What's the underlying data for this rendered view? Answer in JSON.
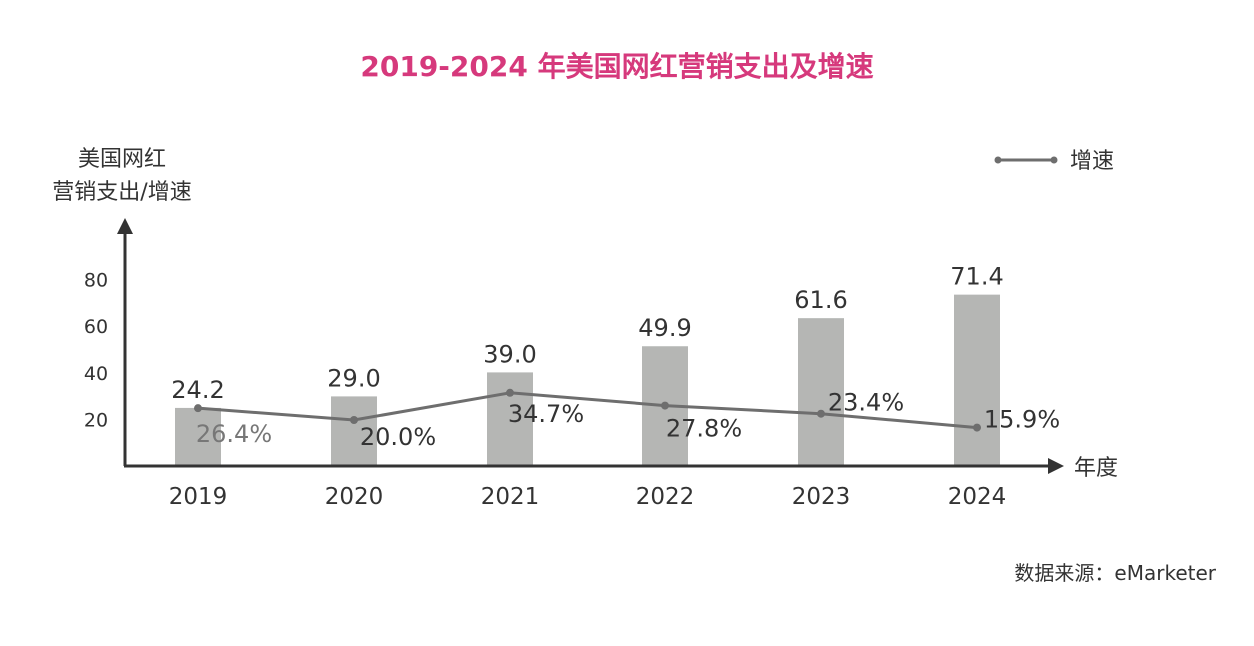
{
  "chart_data": {
    "type": "bar+line",
    "title": "2019-2024 年美国网红营销支出及增速",
    "ylabel_line1": "美国网红",
    "ylabel_line2": "营销支出/增速",
    "xlabel": "年度",
    "categories": [
      "2019",
      "2020",
      "2021",
      "2022",
      "2023",
      "2024"
    ],
    "yticks": [
      20,
      40,
      60,
      80
    ],
    "series": [
      {
        "name": "营销支出",
        "type": "bar",
        "values": [
          24.2,
          29.0,
          39.0,
          49.9,
          61.6,
          71.4
        ],
        "labels": [
          "24.2",
          "29.0",
          "39.0",
          "49.9",
          "61.6",
          "71.4"
        ],
        "color": "#b5b6b4"
      },
      {
        "name": "增速",
        "type": "line",
        "values": [
          26.4,
          20.0,
          34.7,
          27.8,
          23.4,
          15.9
        ],
        "labels": [
          "26.4%",
          "20.0%",
          "34.7%",
          "27.8%",
          "23.4%",
          "15.9%"
        ],
        "color": "#6e6e6e"
      }
    ],
    "legend": {
      "label": "增速",
      "position": "top-right"
    },
    "source": "数据来源：eMarketer",
    "title_color": "#d6397c"
  }
}
